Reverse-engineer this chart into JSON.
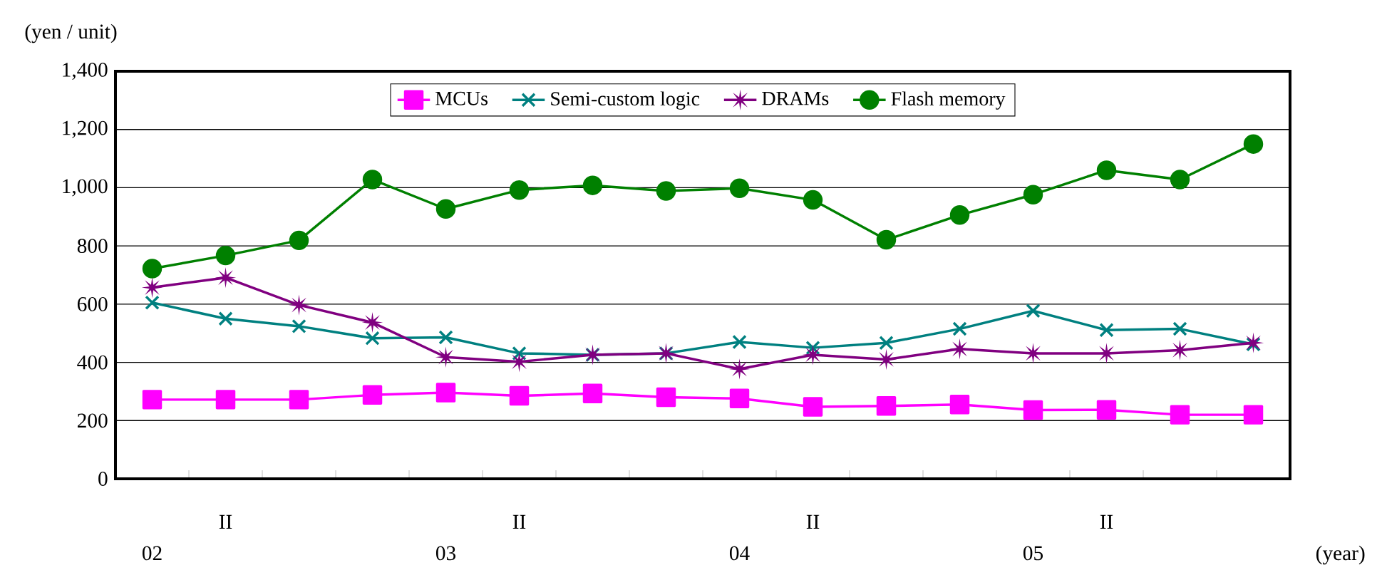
{
  "chart_data": {
    "type": "line",
    "ylabel": "(yen / unit)",
    "xlabel": "(year)",
    "categories": [
      "02",
      "II",
      null,
      null,
      "03",
      "II",
      null,
      null,
      "04",
      "II",
      null,
      null,
      "05",
      "II",
      null,
      null
    ],
    "series": [
      {
        "name": "MCUs",
        "color": "#ff00ff",
        "marker": "square",
        "values": [
          272,
          272,
          272,
          288,
          296,
          285,
          293,
          280,
          276,
          247,
          250,
          255,
          236,
          237,
          220,
          220
        ]
      },
      {
        "name": "Semi-custom logic",
        "color": "#008080",
        "marker": "cross",
        "values": [
          605,
          550,
          524,
          483,
          486,
          431,
          426,
          431,
          470,
          450,
          467,
          515,
          577,
          511,
          515,
          462
        ]
      },
      {
        "name": "DRAMs",
        "color": "#800080",
        "marker": "star",
        "values": [
          657,
          691,
          597,
          537,
          418,
          402,
          426,
          431,
          377,
          426,
          410,
          446,
          431,
          431,
          442,
          467
        ]
      },
      {
        "name": "Flash memory",
        "color": "#008000",
        "marker": "circle",
        "values": [
          722,
          767,
          819,
          1028,
          927,
          992,
          1008,
          989,
          998,
          958,
          821,
          906,
          976,
          1060,
          1028,
          1150
        ]
      }
    ],
    "ylim": [
      0,
      1400
    ],
    "yticks": [
      0,
      200,
      400,
      600,
      800,
      {
        "value": 1000,
        "label": "1,000"
      },
      {
        "value": 1200,
        "label": "1,200"
      },
      {
        "value": 1400,
        "label": "1,400"
      }
    ],
    "grid": "y",
    "legend": "top"
  }
}
